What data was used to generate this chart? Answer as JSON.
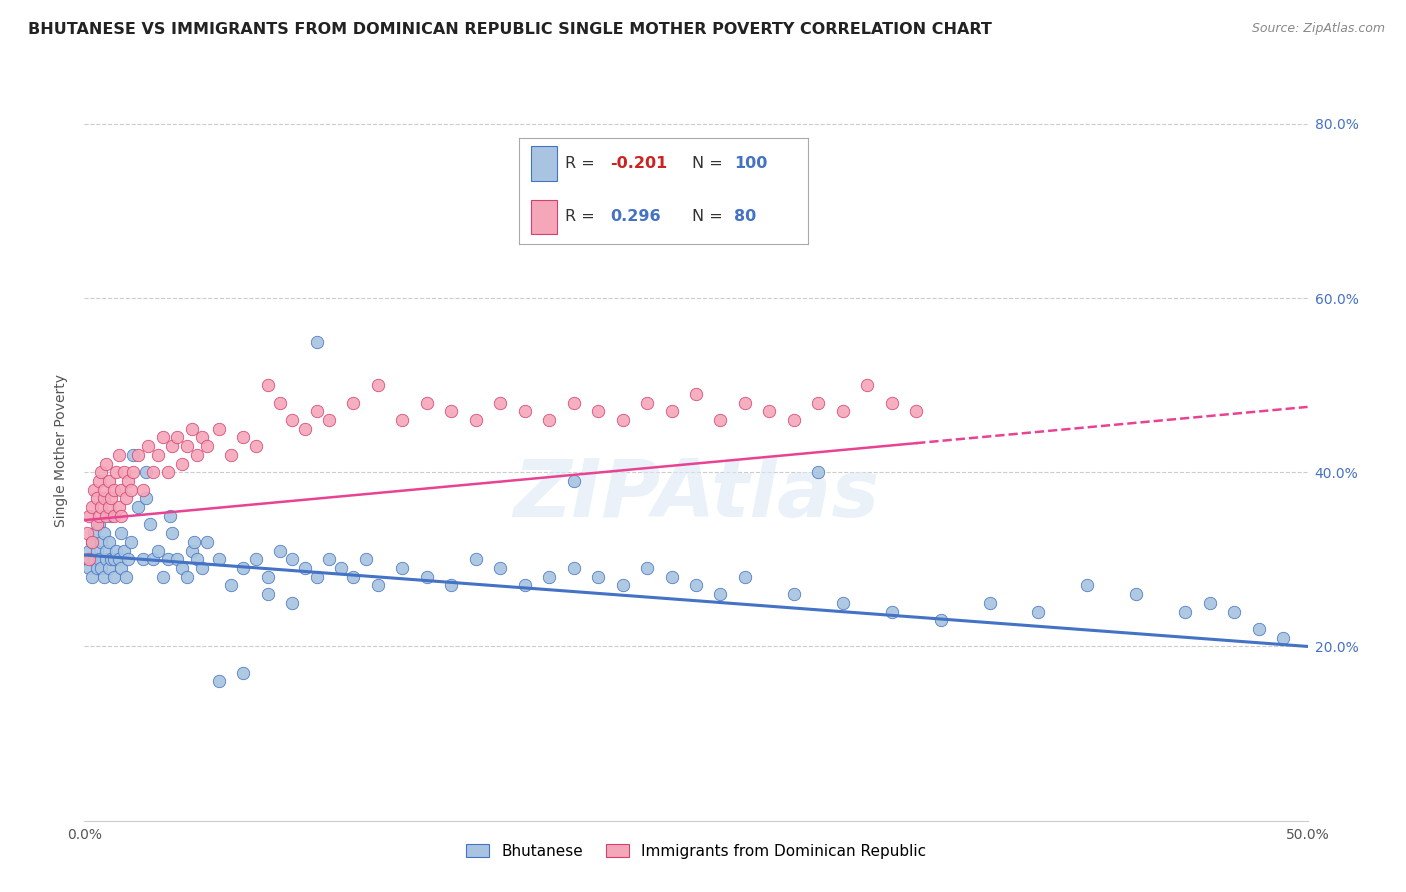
{
  "title": "BHUTANESE VS IMMIGRANTS FROM DOMINICAN REPUBLIC SINGLE MOTHER POVERTY CORRELATION CHART",
  "source": "Source: ZipAtlas.com",
  "ylabel": "Single Mother Poverty",
  "xlim": [
    0.0,
    0.5
  ],
  "ylim": [
    0.0,
    0.85
  ],
  "xtick_labels": [
    "0.0%",
    "",
    "",
    "",
    "",
    "50.0%"
  ],
  "xtick_values": [
    0.0,
    0.1,
    0.2,
    0.3,
    0.4,
    0.5
  ],
  "ytick_values": [
    0.2,
    0.4,
    0.6,
    0.8
  ],
  "right_ytick_labels": [
    "20.0%",
    "40.0%",
    "60.0%",
    "80.0%"
  ],
  "right_ytick_values": [
    0.2,
    0.4,
    0.6,
    0.8
  ],
  "blue_color": "#a8c4e0",
  "pink_color": "#f4a7b9",
  "blue_line_color": "#4472c4",
  "pink_line_color": "#e84393",
  "blue_R": -0.201,
  "blue_N": 100,
  "pink_R": 0.296,
  "pink_N": 80,
  "legend_label_blue": "Bhutanese",
  "legend_label_pink": "Immigrants from Dominican Republic",
  "background_color": "#ffffff",
  "grid_color": "#cccccc",
  "blue_scatter_x": [
    0.001,
    0.002,
    0.002,
    0.003,
    0.003,
    0.004,
    0.004,
    0.005,
    0.005,
    0.006,
    0.006,
    0.007,
    0.007,
    0.008,
    0.008,
    0.009,
    0.009,
    0.01,
    0.01,
    0.011,
    0.011,
    0.012,
    0.012,
    0.013,
    0.014,
    0.015,
    0.015,
    0.016,
    0.017,
    0.018,
    0.019,
    0.02,
    0.022,
    0.024,
    0.025,
    0.027,
    0.028,
    0.03,
    0.032,
    0.034,
    0.036,
    0.038,
    0.04,
    0.042,
    0.044,
    0.046,
    0.048,
    0.05,
    0.055,
    0.06,
    0.065,
    0.07,
    0.075,
    0.08,
    0.085,
    0.09,
    0.095,
    0.1,
    0.105,
    0.11,
    0.115,
    0.12,
    0.13,
    0.14,
    0.15,
    0.16,
    0.17,
    0.18,
    0.19,
    0.2,
    0.21,
    0.22,
    0.23,
    0.24,
    0.25,
    0.26,
    0.27,
    0.29,
    0.31,
    0.33,
    0.35,
    0.37,
    0.39,
    0.41,
    0.43,
    0.45,
    0.46,
    0.47,
    0.48,
    0.49,
    0.025,
    0.035,
    0.045,
    0.055,
    0.065,
    0.075,
    0.085,
    0.095,
    0.2,
    0.3
  ],
  "blue_scatter_y": [
    0.3,
    0.29,
    0.31,
    0.28,
    0.32,
    0.3,
    0.33,
    0.29,
    0.31,
    0.3,
    0.34,
    0.29,
    0.32,
    0.28,
    0.33,
    0.3,
    0.31,
    0.29,
    0.32,
    0.3,
    0.35,
    0.3,
    0.28,
    0.31,
    0.3,
    0.29,
    0.33,
    0.31,
    0.28,
    0.3,
    0.32,
    0.42,
    0.36,
    0.3,
    0.37,
    0.34,
    0.3,
    0.31,
    0.28,
    0.3,
    0.33,
    0.3,
    0.29,
    0.28,
    0.31,
    0.3,
    0.29,
    0.32,
    0.3,
    0.27,
    0.29,
    0.3,
    0.28,
    0.31,
    0.3,
    0.29,
    0.28,
    0.3,
    0.29,
    0.28,
    0.3,
    0.27,
    0.29,
    0.28,
    0.27,
    0.3,
    0.29,
    0.27,
    0.28,
    0.29,
    0.28,
    0.27,
    0.29,
    0.28,
    0.27,
    0.26,
    0.28,
    0.26,
    0.25,
    0.24,
    0.23,
    0.25,
    0.24,
    0.27,
    0.26,
    0.24,
    0.25,
    0.24,
    0.22,
    0.21,
    0.4,
    0.35,
    0.32,
    0.16,
    0.17,
    0.26,
    0.25,
    0.55,
    0.39,
    0.4
  ],
  "pink_scatter_x": [
    0.001,
    0.002,
    0.002,
    0.003,
    0.003,
    0.004,
    0.005,
    0.005,
    0.006,
    0.006,
    0.007,
    0.007,
    0.008,
    0.008,
    0.009,
    0.009,
    0.01,
    0.01,
    0.011,
    0.012,
    0.012,
    0.013,
    0.014,
    0.014,
    0.015,
    0.015,
    0.016,
    0.017,
    0.018,
    0.019,
    0.02,
    0.022,
    0.024,
    0.026,
    0.028,
    0.03,
    0.032,
    0.034,
    0.036,
    0.038,
    0.04,
    0.042,
    0.044,
    0.046,
    0.048,
    0.05,
    0.055,
    0.06,
    0.065,
    0.07,
    0.075,
    0.08,
    0.085,
    0.09,
    0.095,
    0.1,
    0.11,
    0.12,
    0.13,
    0.14,
    0.15,
    0.16,
    0.17,
    0.18,
    0.19,
    0.2,
    0.21,
    0.22,
    0.23,
    0.24,
    0.25,
    0.26,
    0.27,
    0.28,
    0.29,
    0.3,
    0.31,
    0.32,
    0.33,
    0.34
  ],
  "pink_scatter_y": [
    0.33,
    0.35,
    0.3,
    0.36,
    0.32,
    0.38,
    0.34,
    0.37,
    0.35,
    0.39,
    0.36,
    0.4,
    0.37,
    0.38,
    0.35,
    0.41,
    0.36,
    0.39,
    0.37,
    0.38,
    0.35,
    0.4,
    0.36,
    0.42,
    0.38,
    0.35,
    0.4,
    0.37,
    0.39,
    0.38,
    0.4,
    0.42,
    0.38,
    0.43,
    0.4,
    0.42,
    0.44,
    0.4,
    0.43,
    0.44,
    0.41,
    0.43,
    0.45,
    0.42,
    0.44,
    0.43,
    0.45,
    0.42,
    0.44,
    0.43,
    0.5,
    0.48,
    0.46,
    0.45,
    0.47,
    0.46,
    0.48,
    0.5,
    0.46,
    0.48,
    0.47,
    0.46,
    0.48,
    0.47,
    0.46,
    0.48,
    0.47,
    0.46,
    0.48,
    0.47,
    0.49,
    0.46,
    0.48,
    0.47,
    0.46,
    0.48,
    0.47,
    0.5,
    0.48,
    0.47
  ]
}
